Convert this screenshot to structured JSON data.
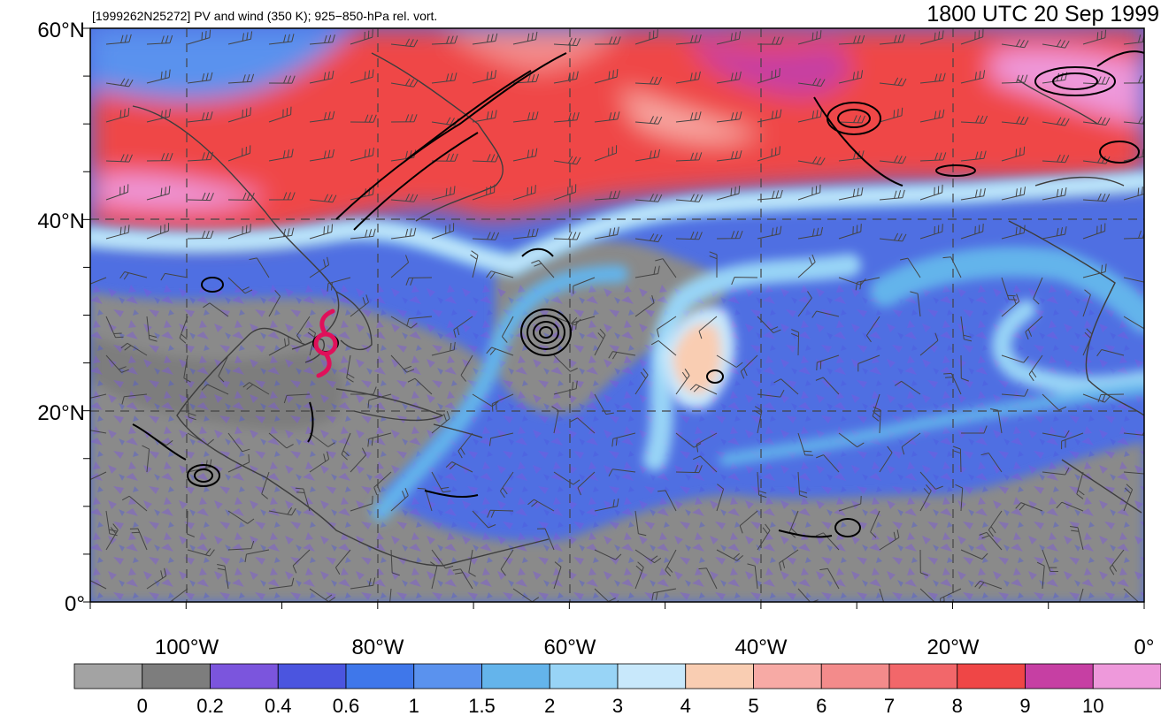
{
  "header": {
    "left_title": "[1999262N25272] PV and wind (350 K); 925−850-hPa rel. vort.",
    "right_title": "1800 UTC 20 Sep 1999"
  },
  "map": {
    "lat_labels": [
      "60°N",
      "40°N",
      "20°N",
      "0°"
    ],
    "lon_labels": [
      "100°W",
      "80°W",
      "60°W",
      "40°W",
      "20°W",
      "0°"
    ],
    "storm_symbol": "tropical-cyclone-icon",
    "storm_color": "#e0105a"
  },
  "colorbar": {
    "colors": [
      "#a3a3a3",
      "#7d7d7d",
      "#7b55dd",
      "#4b55df",
      "#3f77ea",
      "#5a92ee",
      "#64b4eb",
      "#98d4f6",
      "#c8e8fb",
      "#f9cdb2",
      "#f7aaa5",
      "#f38b8b",
      "#f2676a",
      "#ef4646",
      "#c63fa3",
      "#ee99db"
    ],
    "labels": [
      "0",
      "0.2",
      "0.4",
      "0.6",
      "1",
      "1.5",
      "2",
      "3",
      "4",
      "5",
      "6",
      "7",
      "8",
      "9",
      "10"
    ]
  }
}
